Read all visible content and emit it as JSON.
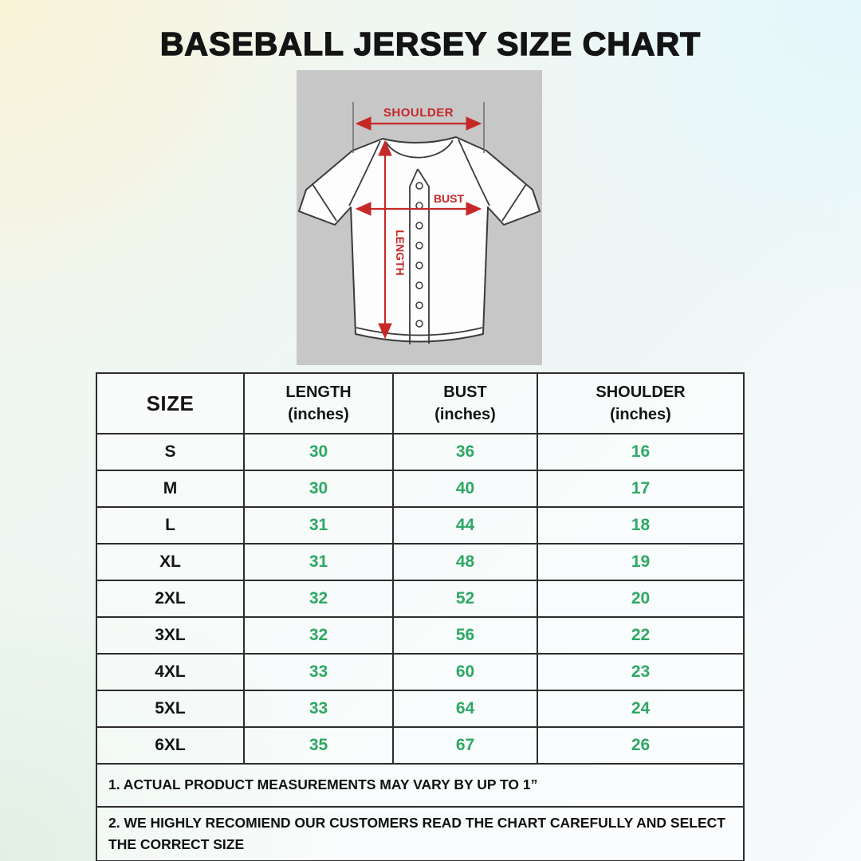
{
  "title": "BASEBALL JERSEY SIZE CHART",
  "diagram": {
    "labels": {
      "shoulder": "SHOULDER",
      "bust": "BUST",
      "length": "LENGTH"
    },
    "colors": {
      "panel_bg": "#c7c7c7",
      "annotation_red": "#c62828",
      "jersey_outline": "#3b3b3b"
    }
  },
  "table": {
    "columns": [
      {
        "label": "SIZE",
        "unit": ""
      },
      {
        "label": "LENGTH",
        "unit": "(inches)"
      },
      {
        "label": "BUST",
        "unit": "(inches)"
      },
      {
        "label": "SHOULDER",
        "unit": "(inches)"
      }
    ],
    "value_color": "#2ea864",
    "rows": [
      {
        "size": "S",
        "length": "30",
        "bust": "36",
        "shoulder": "16"
      },
      {
        "size": "M",
        "length": "30",
        "bust": "40",
        "shoulder": "17"
      },
      {
        "size": "L",
        "length": "31",
        "bust": "44",
        "shoulder": "18"
      },
      {
        "size": "XL",
        "length": "31",
        "bust": "48",
        "shoulder": "19"
      },
      {
        "size": "2XL",
        "length": "32",
        "bust": "52",
        "shoulder": "20"
      },
      {
        "size": "3XL",
        "length": "32",
        "bust": "56",
        "shoulder": "22"
      },
      {
        "size": "4XL",
        "length": "33",
        "bust": "60",
        "shoulder": "23"
      },
      {
        "size": "5XL",
        "length": "33",
        "bust": "64",
        "shoulder": "24"
      },
      {
        "size": "6XL",
        "length": "35",
        "bust": "67",
        "shoulder": "26"
      }
    ]
  },
  "notes": [
    "1. ACTUAL PRODUCT MEASUREMENTS MAY VARY BY UP TO 1”",
    "2. WE HIGHLY RECOMIEND OUR CUSTOMERS READ THE CHART CAREFULLY AND SELECT THE CORRECT SIZE"
  ]
}
